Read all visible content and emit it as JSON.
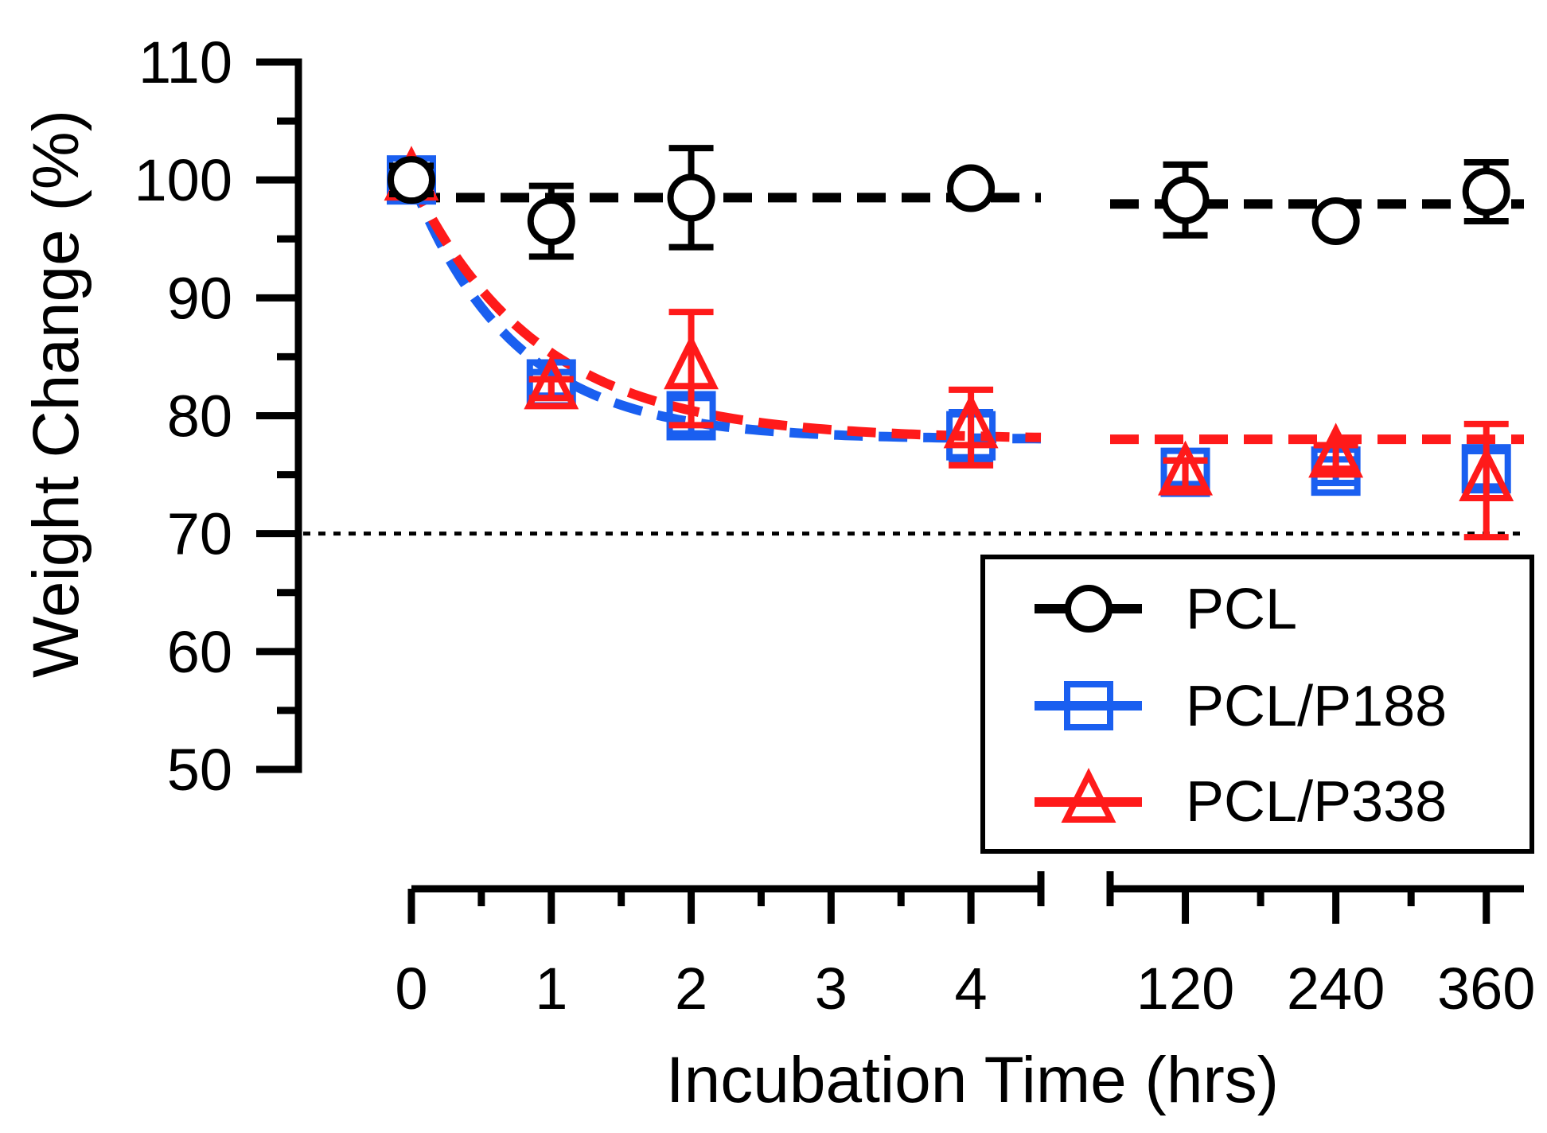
{
  "chart_data": {
    "type": "line",
    "title": "",
    "xlabel": "Incubation Time (hrs)",
    "ylabel": "Weight Change (%)",
    "ylim": [
      50,
      110
    ],
    "y_ticks": [
      "50",
      "60",
      "70",
      "80",
      "90",
      "100",
      "110"
    ],
    "x_segments": [
      {
        "name": "early",
        "range": [
          0,
          4.5
        ],
        "tick_labels": [
          "0",
          "1",
          "2",
          "3",
          "4"
        ]
      },
      {
        "name": "late",
        "range": [
          60,
          390
        ],
        "tick_labels": [
          "120",
          "240",
          "360"
        ]
      }
    ],
    "reference_line": 70,
    "legend": {
      "placement": "bottom-right",
      "entries": [
        "PCL",
        "PCL/P188",
        "PCL/P338"
      ]
    },
    "series": [
      {
        "name": "PCL",
        "color": "#000000",
        "marker": "circle",
        "x": [
          0,
          1,
          2,
          4,
          120,
          240,
          360
        ],
        "y": [
          100,
          96.5,
          98.5,
          99.3,
          98.3,
          96.5,
          99.0
        ],
        "err": [
          1.2,
          3.0,
          4.2,
          0.6,
          3.0,
          0.5,
          2.5
        ],
        "fit": "flat",
        "fit_level": 98.5
      },
      {
        "name": "PCL/P188",
        "color": "#1a5ff0",
        "marker": "square",
        "x": [
          0,
          1,
          2,
          4,
          120,
          240,
          360
        ],
        "y": [
          100,
          82.7,
          80.0,
          78.3,
          75.2,
          75.3,
          75.5
        ],
        "err": [
          0.8,
          1.0,
          1.5,
          2.0,
          1.0,
          1.0,
          1.5
        ],
        "fit": "exp_decay",
        "fit_plateau": 78,
        "fit_rate": 1.35
      },
      {
        "name": "PCL/P338",
        "color": "#ff1a1a",
        "marker": "triangle",
        "x": [
          0,
          1,
          2,
          4,
          120,
          240,
          360
        ],
        "y": [
          100,
          82.3,
          84.0,
          79.0,
          75.0,
          76.5,
          74.5
        ],
        "err": [
          0.5,
          0.8,
          4.8,
          3.2,
          1.2,
          1.0,
          4.8
        ],
        "fit": "exp_decay",
        "fit_plateau": 78,
        "fit_rate": 1.1
      }
    ]
  }
}
